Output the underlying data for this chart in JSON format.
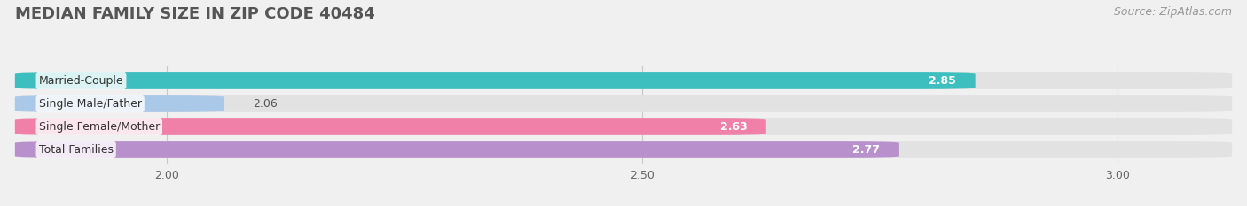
{
  "title": "MEDIAN FAMILY SIZE IN ZIP CODE 40484",
  "source": "Source: ZipAtlas.com",
  "categories": [
    "Married-Couple",
    "Single Male/Father",
    "Single Female/Mother",
    "Total Families"
  ],
  "values": [
    2.85,
    2.06,
    2.63,
    2.77
  ],
  "bar_colors": [
    "#3dbfbf",
    "#aac8e8",
    "#f080a8",
    "#b890cc"
  ],
  "xlim_min": 1.84,
  "xlim_max": 3.12,
  "xticks": [
    2.0,
    2.5,
    3.0
  ],
  "title_fontsize": 13,
  "label_fontsize": 9,
  "value_fontsize": 9,
  "source_fontsize": 9,
  "bar_height": 0.72,
  "bg_color": "#f0f0f0",
  "bar_bg_color": "#e2e2e2"
}
